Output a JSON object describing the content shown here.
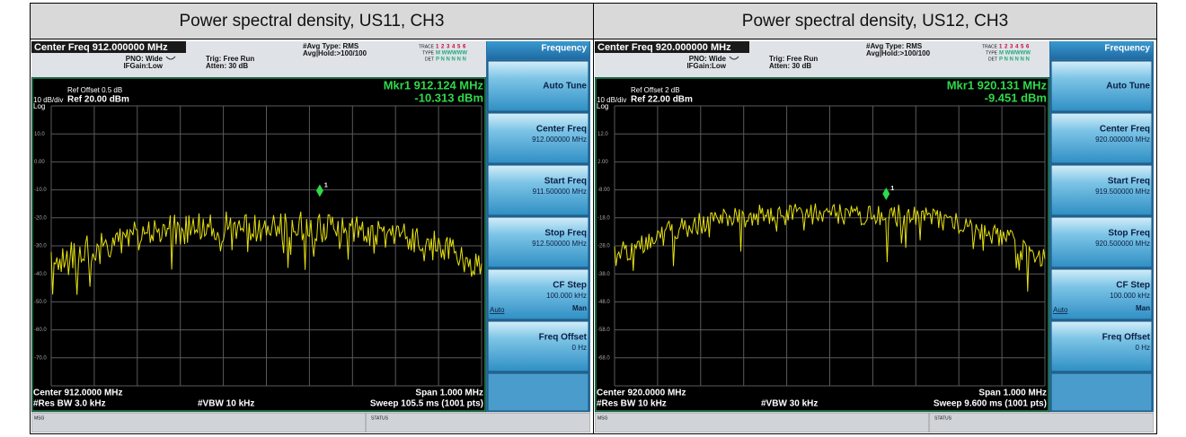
{
  "panels": [
    {
      "header": "Power spectral density, US11, CH3",
      "center_freq": "Center Freq 912.000000 MHz",
      "pno": "PNO: Wide",
      "ifgain": "IFGain:Low",
      "trig": "Trig: Free Run",
      "atten": "Atten: 30 dB",
      "avg_type": "#Avg Type: RMS",
      "avg_hold": "Avg|Hold:>100/100",
      "trace": "TRACE",
      "trace_nums": "1 2 3 4 5 6",
      "type": "TYPE",
      "type_val": "M WWWWW",
      "det": "DET",
      "det_val": "P N N N N N",
      "ref_offset": "Ref Offset 0.5 dB",
      "scale": "10 dB/div",
      "ref": "Ref 20.00 dBm",
      "log": "Log",
      "marker_freq": "Mkr1 912.124 MHz",
      "marker_level": "-10.313 dBm",
      "marker_id": "1",
      "y_labels": [
        "10.0",
        "0.00",
        "-10.0",
        "-20.0",
        "-30.0",
        "-40.0",
        "-50.0",
        "-60.0",
        "-70.0"
      ],
      "menu_title": "Frequency",
      "softkeys": [
        {
          "label": "Auto Tune"
        },
        {
          "label": "Center Freq",
          "value": "912.000000 MHz"
        },
        {
          "label": "Start Freq",
          "value": "911.500000 MHz"
        },
        {
          "label": "Stop Freq",
          "value": "912.500000 MHz"
        },
        {
          "label": "CF Step",
          "value": "100.000 kHz",
          "auto": "Auto",
          "man": "Man"
        },
        {
          "label": "Freq Offset",
          "value": "0 Hz"
        }
      ],
      "bottom": {
        "center": "Center 912.0000 MHz",
        "span": "Span 1.000 MHz",
        "rbw": "#Res BW 3.0 kHz",
        "vbw": "#VBW 10 kHz",
        "sweep": "Sweep  105.5 ms (1001 pts)"
      },
      "msg": "MSG",
      "status": "STATUS"
    },
    {
      "header": "Power spectral density, US12, CH3",
      "center_freq": "Center Freq 920.000000 MHz",
      "pno": "PNO: Wide",
      "ifgain": "IFGain:Low",
      "trig": "Trig: Free Run",
      "atten": "Atten: 30 dB",
      "avg_type": "#Avg Type: RMS",
      "avg_hold": "Avg|Hold:>100/100",
      "trace": "TRACE",
      "trace_nums": "1 2 3 4 5 6",
      "type": "TYPE",
      "type_val": "M WWWWW",
      "det": "DET",
      "det_val": "P N N N N N",
      "ref_offset": "Ref Offset 2 dB",
      "scale": "10 dB/div",
      "ref": "Ref 22.00 dBm",
      "log": "Log",
      "marker_freq": "Mkr1 920.131 MHz",
      "marker_level": "-9.451 dBm",
      "marker_id": "1",
      "y_labels": [
        "12.0",
        "2.00",
        "-8.00",
        "-18.0",
        "-28.0",
        "-38.0",
        "-48.0",
        "-58.0",
        "-68.0"
      ],
      "menu_title": "Frequency",
      "softkeys": [
        {
          "label": "Auto Tune"
        },
        {
          "label": "Center Freq",
          "value": "920.000000 MHz"
        },
        {
          "label": "Start Freq",
          "value": "919.500000 MHz"
        },
        {
          "label": "Stop Freq",
          "value": "920.500000 MHz"
        },
        {
          "label": "CF Step",
          "value": "100.000 kHz",
          "auto": "Auto",
          "man": "Man"
        },
        {
          "label": "Freq Offset",
          "value": "0 Hz"
        }
      ],
      "bottom": {
        "center": "Center 920.0000 MHz",
        "span": "Span 1.000 MHz",
        "rbw": "#Res BW 10 kHz",
        "vbw": "#VBW 30 kHz",
        "sweep": "Sweep  9.600 ms (1001 pts)"
      },
      "msg": "MSG",
      "status": "STATUS"
    }
  ]
}
